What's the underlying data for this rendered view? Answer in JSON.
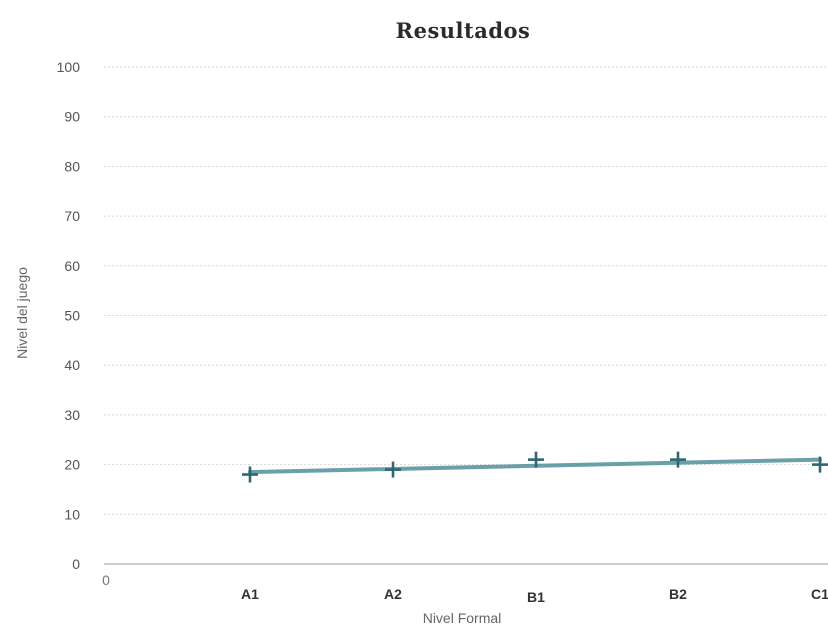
{
  "chart_data": {
    "type": "scatter",
    "title": "Resultados",
    "xlabel": "Nivel Formal",
    "ylabel": "Nivel del juego",
    "origin_label": "0",
    "categories": [
      "A1",
      "A2",
      "B1",
      "B2",
      "C1"
    ],
    "yticks": [
      "0",
      "10",
      "20",
      "30",
      "40",
      "50",
      "60",
      "70",
      "80",
      "90",
      "100"
    ],
    "ylim": [
      0,
      100
    ],
    "grid": true,
    "series": [
      {
        "values": [
          18,
          19,
          21,
          21,
          20
        ],
        "marker": "plus",
        "color": "#2f6670"
      }
    ],
    "trendline": {
      "start": 18.5,
      "end": 21,
      "color": "#4f8f9a"
    }
  }
}
